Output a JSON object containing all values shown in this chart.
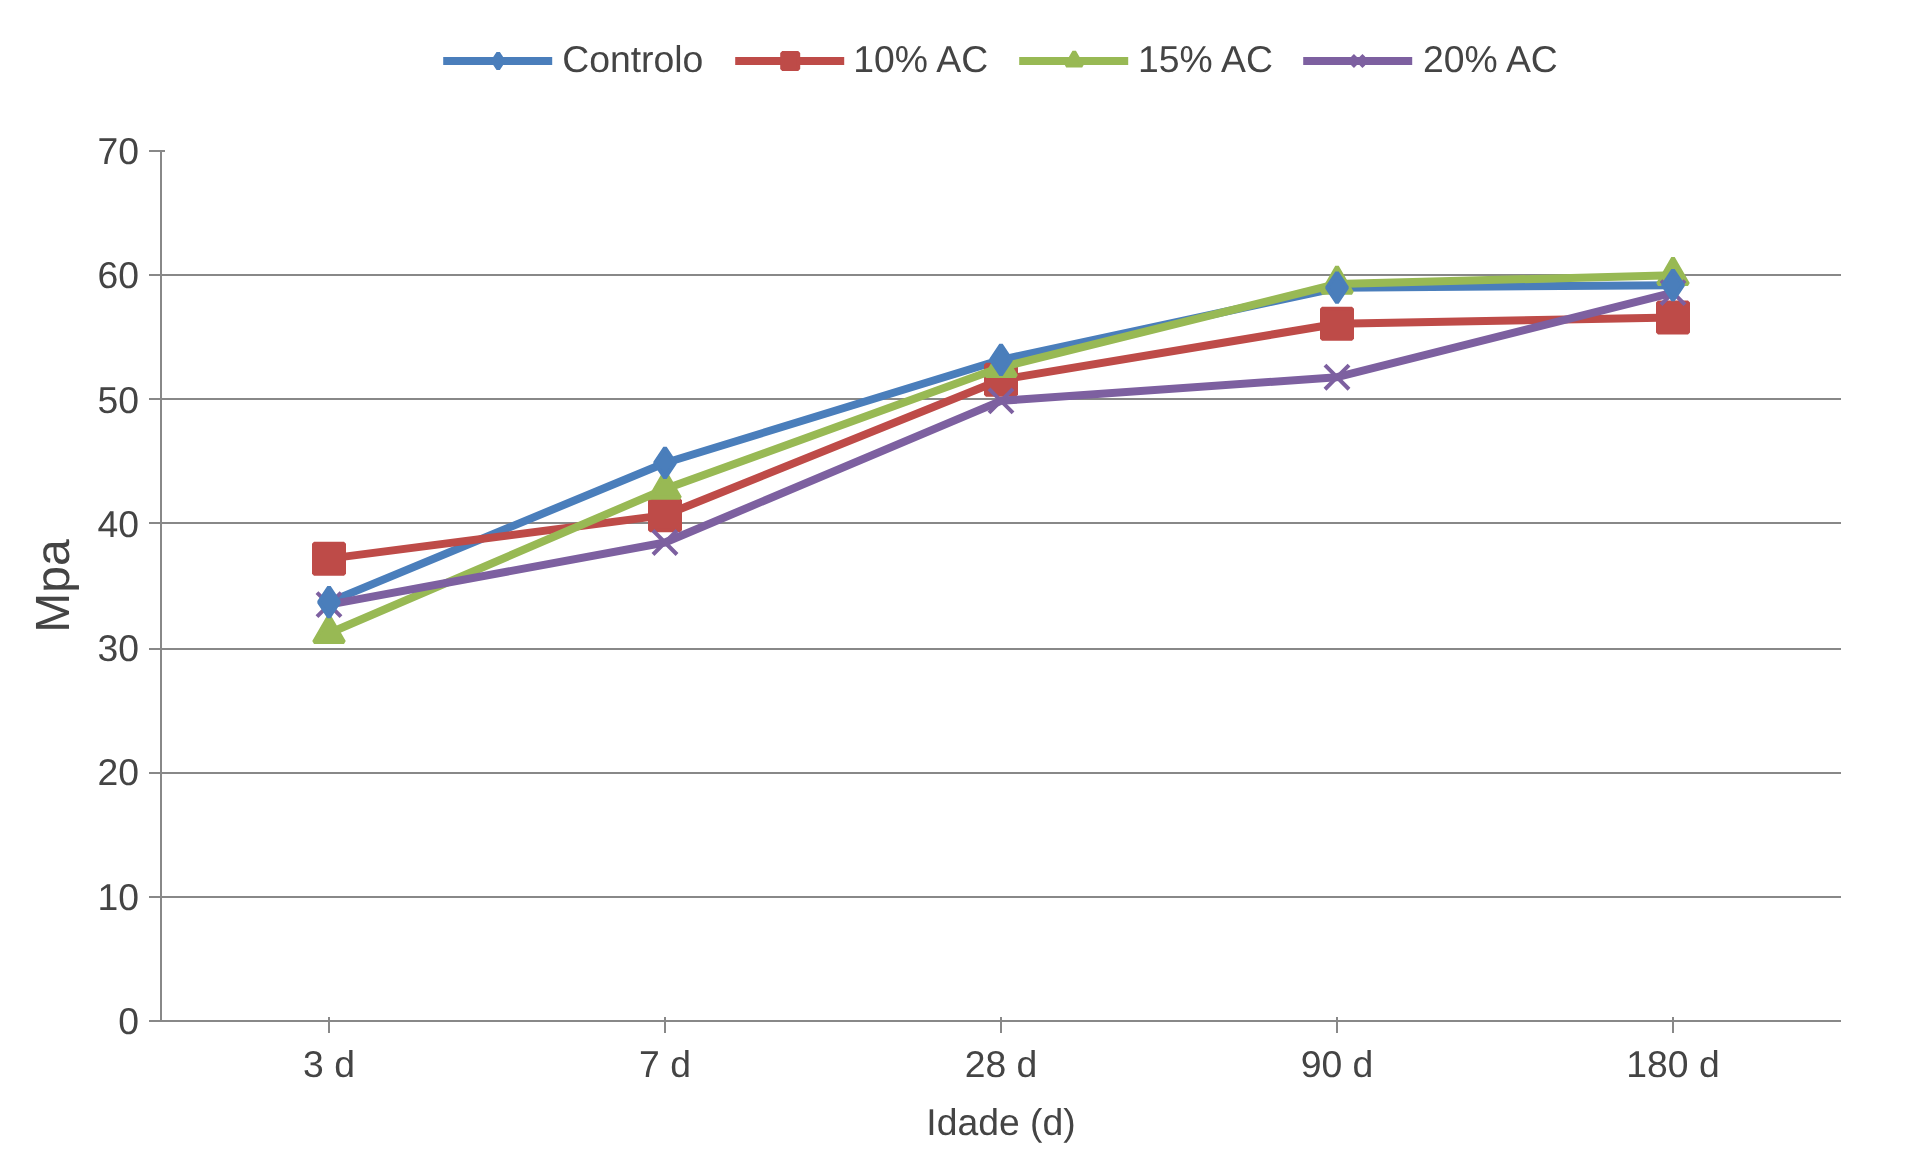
{
  "chart_data": {
    "type": "line",
    "xlabel": "Idade (d)",
    "ylabel": "Mpa",
    "categories": [
      "3 d",
      "7 d",
      "28 d",
      "90 d",
      "180 d"
    ],
    "series": [
      {
        "name": "Controlo",
        "color": "#4a7ebb",
        "marker": "diamond",
        "values": [
          33.7,
          44.9,
          53.2,
          59.0,
          59.2
        ]
      },
      {
        "name": "10% AC",
        "color": "#be4b48",
        "marker": "square",
        "values": [
          37.2,
          40.7,
          51.6,
          56.1,
          56.6
        ]
      },
      {
        "name": "15% AC",
        "color": "#98b954",
        "marker": "triangle",
        "values": [
          31.2,
          42.8,
          52.6,
          59.3,
          60.0
        ]
      },
      {
        "name": "20% AC",
        "color": "#7d60a0",
        "marker": "cross",
        "values": [
          33.5,
          38.5,
          49.9,
          51.8,
          58.6
        ]
      }
    ],
    "ylim": [
      0,
      70
    ],
    "yticks": [
      0,
      10,
      20,
      30,
      40,
      50,
      60,
      70
    ],
    "grid": "y",
    "legend": "top",
    "line_style": "solid"
  }
}
